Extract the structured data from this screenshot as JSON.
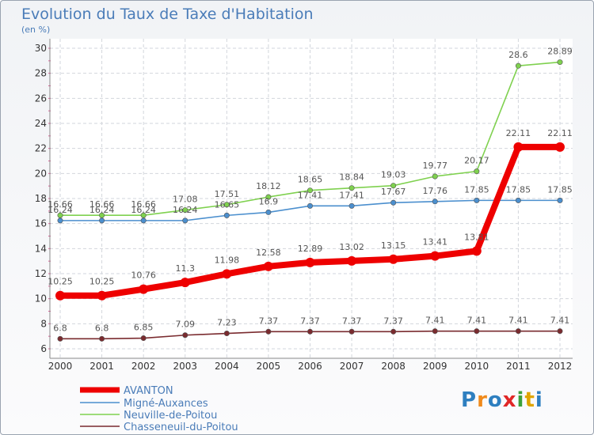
{
  "header": {
    "title": "Evolution du Taux de Taxe d'Habitation",
    "subtitle": "(en %)"
  },
  "logo": {
    "text": "Proxiti",
    "colors": [
      "#2e7fc0",
      "#f08a1c",
      "#2e7fc0",
      "#e02727",
      "#3ca13a",
      "#e0a500",
      "#2e7fc0"
    ]
  },
  "chart_data": {
    "type": "line",
    "title": "Evolution du Taux de Taxe d'Habitation",
    "ylabel": "(en %)",
    "xlabel": "",
    "x": [
      "2000",
      "2001",
      "2002",
      "2003",
      "2004",
      "2005",
      "2006",
      "2007",
      "2008",
      "2009",
      "2010",
      "2011",
      "2012"
    ],
    "ylim": [
      6,
      30
    ],
    "yticks": [
      "6",
      "8",
      "10",
      "12",
      "14",
      "16",
      "18",
      "20",
      "22",
      "24",
      "26",
      "28",
      "30"
    ],
    "grid": true,
    "legend_position": "bottom-left",
    "series": [
      {
        "name": "AVANTON",
        "color": "#ee0000",
        "values": [
          10.25,
          10.25,
          10.76,
          11.3,
          11.98,
          12.58,
          12.89,
          13.02,
          13.15,
          13.41,
          13.81,
          22.11,
          22.11
        ],
        "labels": [
          "10.25",
          "10.25",
          "10.76",
          "11.3",
          "11.98",
          "12.58",
          "12.89",
          "13.02",
          "13.15",
          "13.41",
          "13.81",
          "22.11",
          "22.11"
        ]
      },
      {
        "name": "Migné-Auxances",
        "color": "#4b8fce",
        "values": [
          16.24,
          16.24,
          16.24,
          16.24,
          16.65,
          16.9,
          17.41,
          17.41,
          17.67,
          17.76,
          17.85,
          17.85,
          17.85
        ],
        "labels": [
          "16.24",
          "16.24",
          "16.24",
          "16.24",
          "16.65",
          "16.9",
          "17.41",
          "17.41",
          "17.67",
          "17.76",
          "17.85",
          "17.85",
          "17.85"
        ]
      },
      {
        "name": "Neuville-de-Poitou",
        "color": "#7fd14f",
        "values": [
          16.66,
          16.66,
          16.66,
          17.08,
          17.51,
          18.12,
          18.65,
          18.84,
          19.03,
          19.77,
          20.17,
          28.6,
          28.89
        ],
        "labels": [
          "16.66",
          "16.66",
          "16.66",
          "17.08",
          "17.51",
          "18.12",
          "18.65",
          "18.84",
          "19.03",
          "19.77",
          "20.17",
          "28.6",
          "28.89"
        ]
      },
      {
        "name": "Chasseneuil-du-Poitou",
        "color": "#7a2b2f",
        "values": [
          6.8,
          6.8,
          6.85,
          7.09,
          7.23,
          7.37,
          7.37,
          7.37,
          7.37,
          7.41,
          7.41,
          7.41,
          7.41
        ],
        "labels": [
          "6.8",
          "6.8",
          "6.85",
          "7.09",
          "7.23",
          "7.37",
          "7.37",
          "7.37",
          "7.37",
          "7.41",
          "7.41",
          "7.41",
          "7.41"
        ]
      }
    ]
  }
}
